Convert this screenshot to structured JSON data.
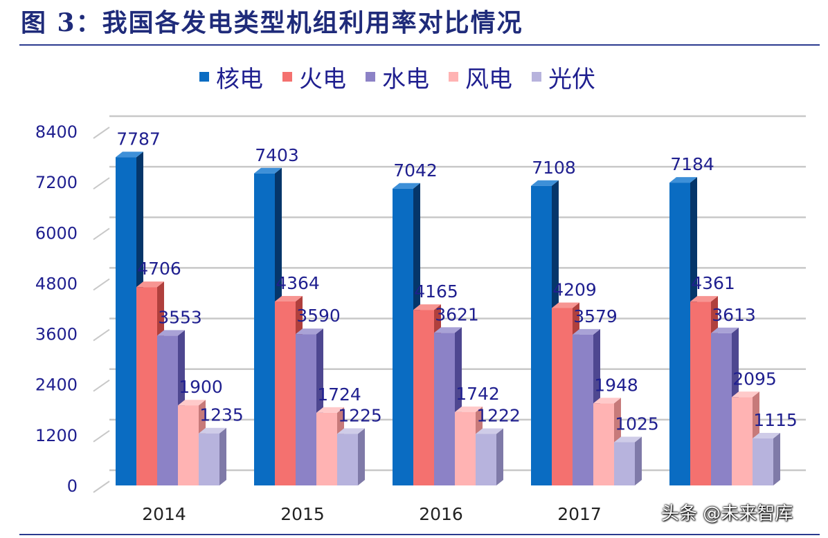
{
  "figure": {
    "title": "图 3：我国各发电类型机组利用率对比情况",
    "watermark": "头条 @未来智库"
  },
  "colors": {
    "rule": "#2a3a8f",
    "title": "#1f2b7a",
    "label": "#1f1f8f",
    "grid": "#c8c8c8",
    "series": [
      "#0a6cc2",
      "#f4716f",
      "#8c82c6",
      "#ffb3b3",
      "#b7b3dd"
    ],
    "series_side": [
      "#05366a",
      "#b0403d",
      "#4e4790",
      "#c77a7a",
      "#7f7aa8"
    ],
    "series_top": [
      "#3e90d8",
      "#f79592",
      "#a9a2d6",
      "#ffcaca",
      "#cfcce8"
    ]
  },
  "chart_data": {
    "type": "bar",
    "title": "",
    "xlabel": "",
    "ylabel": "",
    "categories": [
      "2014",
      "2015",
      "2016",
      "2017",
      ""
    ],
    "series": [
      {
        "name": "核电",
        "values": [
          7787,
          7403,
          7042,
          7108,
          7184
        ]
      },
      {
        "name": "火电",
        "values": [
          4706,
          4364,
          4165,
          4209,
          4361
        ]
      },
      {
        "name": "水电",
        "values": [
          3553,
          3590,
          3621,
          3579,
          3613
        ]
      },
      {
        "name": "风电",
        "values": [
          1900,
          1724,
          1742,
          1948,
          2095
        ]
      },
      {
        "name": "光伏",
        "values": [
          1235,
          1225,
          1222,
          1025,
          1115
        ]
      }
    ],
    "ylim": [
      0,
      8400
    ],
    "yticks": [
      0,
      1200,
      2400,
      3600,
      4800,
      6000,
      7200,
      8400
    ],
    "grid": true,
    "legend": "top",
    "style": "3d-clustered-column"
  }
}
